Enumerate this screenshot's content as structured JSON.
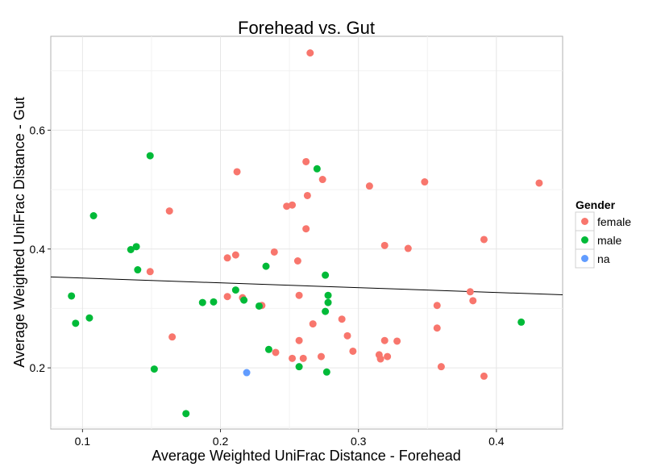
{
  "chart_data": {
    "type": "scatter",
    "title": "Forehead vs. Gut",
    "xlabel": "Average Weighted UniFrac Distance - Forehead",
    "ylabel": "Average Weighted UniFrac Distance - Gut",
    "xlim": [
      0.077,
      0.448
    ],
    "ylim": [
      0.097,
      0.758
    ],
    "xticks": [
      0.1,
      0.2,
      0.3,
      0.4
    ],
    "xtick_labels": [
      "0.1",
      "0.2",
      "0.3",
      "0.4"
    ],
    "yticks": [
      0.2,
      0.4,
      0.6
    ],
    "ytick_labels": [
      "0.2",
      "0.4",
      "0.6"
    ],
    "grid": true,
    "legend": {
      "title": "Gender",
      "position": "right"
    },
    "trendline": {
      "x": [
        0.077,
        0.448
      ],
      "y": [
        0.353,
        0.323
      ],
      "color": "#000000"
    },
    "series": [
      {
        "name": "female",
        "color": "#F8766D",
        "points": [
          [
            0.265,
            0.73
          ],
          [
            0.262,
            0.547
          ],
          [
            0.212,
            0.53
          ],
          [
            0.274,
            0.517
          ],
          [
            0.348,
            0.513
          ],
          [
            0.431,
            0.511
          ],
          [
            0.308,
            0.506
          ],
          [
            0.263,
            0.49
          ],
          [
            0.252,
            0.474
          ],
          [
            0.248,
            0.472
          ],
          [
            0.163,
            0.464
          ],
          [
            0.262,
            0.434
          ],
          [
            0.391,
            0.416
          ],
          [
            0.319,
            0.406
          ],
          [
            0.336,
            0.401
          ],
          [
            0.239,
            0.395
          ],
          [
            0.211,
            0.39
          ],
          [
            0.205,
            0.385
          ],
          [
            0.256,
            0.38
          ],
          [
            0.149,
            0.362
          ],
          [
            0.381,
            0.328
          ],
          [
            0.257,
            0.322
          ],
          [
            0.205,
            0.32
          ],
          [
            0.216,
            0.318
          ],
          [
            0.383,
            0.313
          ],
          [
            0.23,
            0.305
          ],
          [
            0.357,
            0.305
          ],
          [
            0.288,
            0.282
          ],
          [
            0.267,
            0.274
          ],
          [
            0.357,
            0.267
          ],
          [
            0.292,
            0.254
          ],
          [
            0.165,
            0.252
          ],
          [
            0.257,
            0.246
          ],
          [
            0.319,
            0.246
          ],
          [
            0.328,
            0.245
          ],
          [
            0.296,
            0.228
          ],
          [
            0.24,
            0.226
          ],
          [
            0.315,
            0.222
          ],
          [
            0.273,
            0.219
          ],
          [
            0.321,
            0.219
          ],
          [
            0.252,
            0.216
          ],
          [
            0.26,
            0.216
          ],
          [
            0.316,
            0.215
          ],
          [
            0.36,
            0.202
          ],
          [
            0.391,
            0.186
          ]
        ]
      },
      {
        "name": "male",
        "color": "#00BA38",
        "points": [
          [
            0.149,
            0.557
          ],
          [
            0.27,
            0.535
          ],
          [
            0.108,
            0.456
          ],
          [
            0.139,
            0.404
          ],
          [
            0.135,
            0.399
          ],
          [
            0.233,
            0.371
          ],
          [
            0.14,
            0.365
          ],
          [
            0.276,
            0.356
          ],
          [
            0.211,
            0.331
          ],
          [
            0.092,
            0.321
          ],
          [
            0.278,
            0.322
          ],
          [
            0.217,
            0.314
          ],
          [
            0.187,
            0.31
          ],
          [
            0.195,
            0.311
          ],
          [
            0.278,
            0.31
          ],
          [
            0.228,
            0.304
          ],
          [
            0.276,
            0.295
          ],
          [
            0.105,
            0.284
          ],
          [
            0.418,
            0.277
          ],
          [
            0.095,
            0.275
          ],
          [
            0.235,
            0.231
          ],
          [
            0.257,
            0.202
          ],
          [
            0.152,
            0.198
          ],
          [
            0.277,
            0.193
          ],
          [
            0.175,
            0.123
          ]
        ]
      },
      {
        "name": "na",
        "color": "#619CFF",
        "points": [
          [
            0.219,
            0.192
          ]
        ]
      }
    ]
  }
}
